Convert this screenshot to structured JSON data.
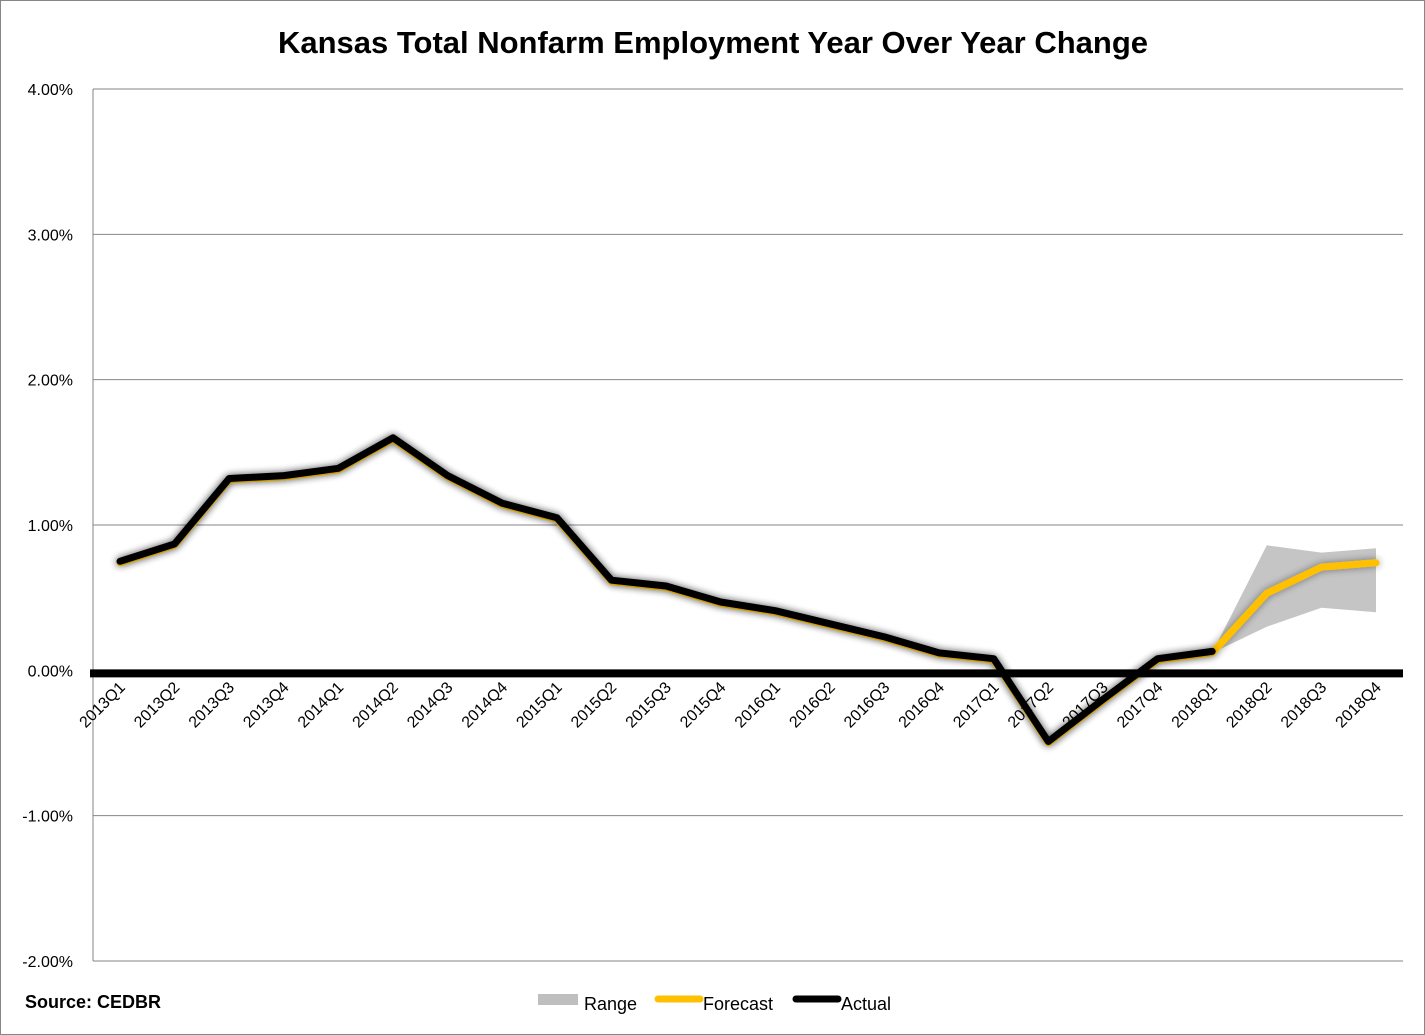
{
  "chart_data": {
    "type": "line",
    "title": "Kansas Total Nonfarm Employment Year Over Year Change",
    "source": "Source: CEDBR",
    "categories": [
      "2013Q1",
      "2013Q2",
      "2013Q3",
      "2013Q4",
      "2014Q1",
      "2014Q2",
      "2014Q3",
      "2014Q4",
      "2015Q1",
      "2015Q2",
      "2015Q3",
      "2015Q4",
      "2016Q1",
      "2016Q2",
      "2016Q3",
      "2016Q4",
      "2017Q1",
      "2017Q2",
      "2017Q3",
      "2017Q4",
      "2018Q1",
      "2018Q2",
      "2018Q3",
      "2018Q4"
    ],
    "series": [
      {
        "name": "Actual",
        "color": "#000000",
        "values": [
          0.75,
          0.87,
          1.32,
          1.34,
          1.39,
          1.6,
          1.34,
          1.15,
          1.05,
          0.62,
          0.58,
          0.47,
          0.41,
          0.32,
          0.23,
          0.12,
          0.08,
          -0.49,
          -0.2,
          0.08,
          0.13,
          null,
          null,
          null
        ]
      },
      {
        "name": "Forecast",
        "color": "#FFC000",
        "values": [
          0.74,
          0.86,
          1.31,
          1.33,
          1.38,
          1.59,
          1.33,
          1.14,
          1.04,
          0.61,
          0.57,
          0.46,
          0.4,
          0.31,
          0.22,
          0.11,
          0.07,
          -0.5,
          -0.21,
          0.07,
          0.12,
          0.53,
          0.71,
          0.74
        ]
      },
      {
        "name": "Range",
        "color": "#BFBFBF",
        "low": [
          null,
          null,
          null,
          null,
          null,
          null,
          null,
          null,
          null,
          null,
          null,
          null,
          null,
          null,
          null,
          null,
          null,
          null,
          null,
          null,
          0.12,
          0.3,
          0.43,
          0.4
        ],
        "high": [
          null,
          null,
          null,
          null,
          null,
          null,
          null,
          null,
          null,
          null,
          null,
          null,
          null,
          null,
          null,
          null,
          null,
          null,
          null,
          null,
          0.12,
          0.86,
          0.81,
          0.84
        ]
      }
    ],
    "yaxis": {
      "min": -2.0,
      "max": 4.0,
      "step": 1.0,
      "tick_labels": [
        "4.00%",
        "3.00%",
        "2.00%",
        "1.00%",
        "0.00%",
        "-1.00%",
        "-2.00%"
      ]
    },
    "grid": true,
    "legend": {
      "placement": "bottom",
      "order": [
        "Range",
        "Forecast",
        "Actual"
      ]
    }
  }
}
